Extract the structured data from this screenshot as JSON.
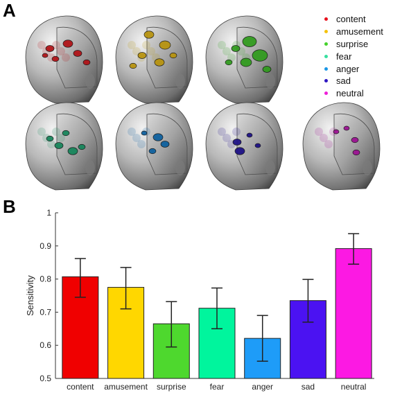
{
  "panel_a_label": "A",
  "panel_b_label": "B",
  "legend": [
    {
      "label": "content",
      "color": "#e8111d"
    },
    {
      "label": "amusement",
      "color": "#f4c20d"
    },
    {
      "label": "surprise",
      "color": "#45d22c"
    },
    {
      "label": "fear",
      "color": "#37e0a0"
    },
    {
      "label": "anger",
      "color": "#1a97e6"
    },
    {
      "label": "sad",
      "color": "#2d16c2"
    },
    {
      "label": "neutral",
      "color": "#ee1fd8"
    }
  ],
  "brain_renders": [
    {
      "emotion": "content",
      "color": "#b01015"
    },
    {
      "emotion": "amusement",
      "color": "#b8930c"
    },
    {
      "emotion": "surprise",
      "color": "#2f9b1c"
    },
    {
      "emotion": "fear",
      "color": "#14855a"
    },
    {
      "emotion": "anger",
      "color": "#0b5f9e"
    },
    {
      "emotion": "sad",
      "color": "#1a0d85"
    },
    {
      "emotion": "neutral",
      "color": "#9c0f92"
    }
  ],
  "chart_data": {
    "type": "bar",
    "categories": [
      "content",
      "amusement",
      "surprise",
      "fear",
      "anger",
      "sad",
      "neutral"
    ],
    "values": [
      0.807,
      0.775,
      0.665,
      0.712,
      0.621,
      0.735,
      0.892
    ],
    "error_low": [
      0.745,
      0.71,
      0.595,
      0.65,
      0.552,
      0.67,
      0.845
    ],
    "error_high": [
      0.862,
      0.835,
      0.732,
      0.773,
      0.69,
      0.799,
      0.937
    ],
    "colors": [
      "#f00000",
      "#ffd700",
      "#4ed82e",
      "#00f59d",
      "#1e9cf8",
      "#4b12f2",
      "#fc19e3"
    ],
    "title": "",
    "xlabel": "",
    "ylabel": "Sensitivity",
    "ylim": [
      0.5,
      1
    ],
    "yticks": [
      "0.5",
      "0.6",
      "0.7",
      "0.8",
      "0.9",
      "1"
    ],
    "grid": false
  }
}
